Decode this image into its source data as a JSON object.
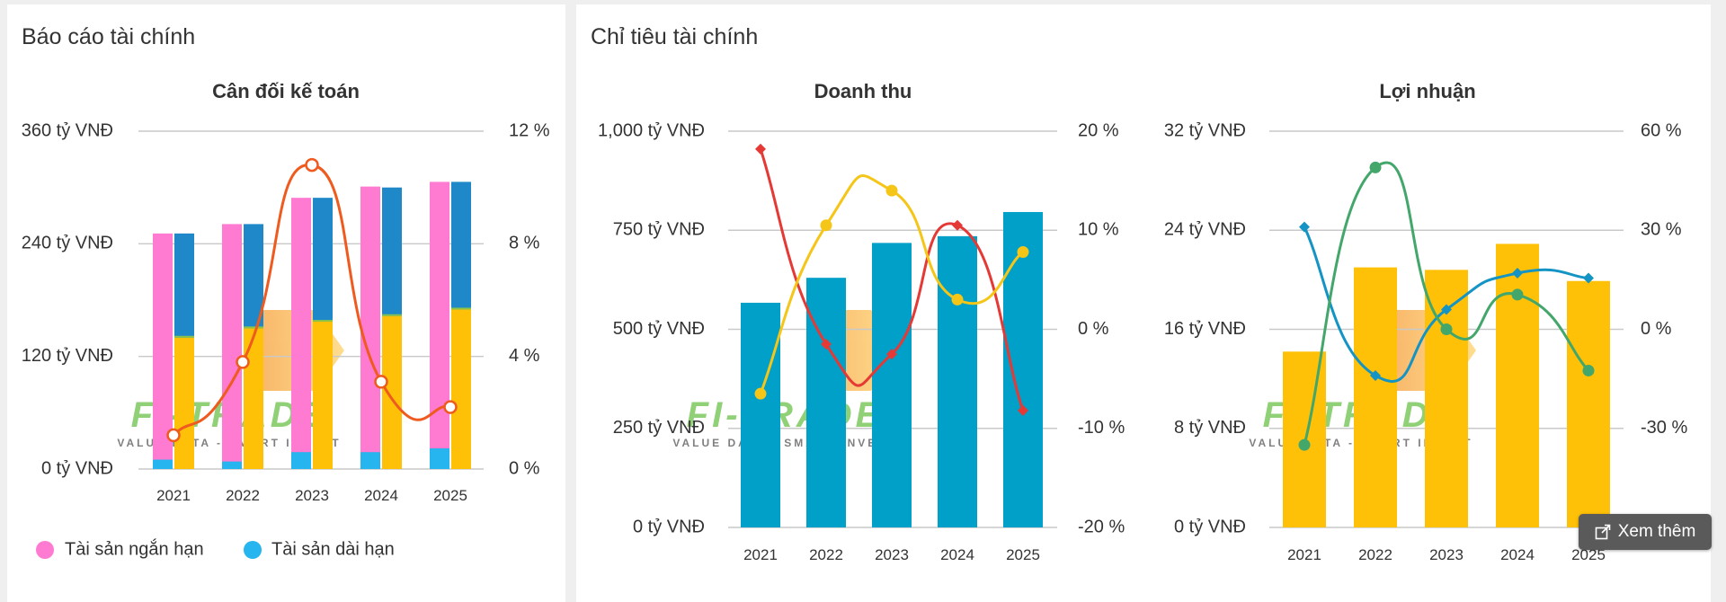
{
  "panels": {
    "left_title": "Báo cáo tài chính",
    "right_title": "Chỉ tiêu tài chính"
  },
  "watermark": {
    "brand": "FI-TRADE",
    "tagline": "VALUE DATA - SMART INVEST"
  },
  "buttons": {
    "more_label": "Xem thêm"
  },
  "colors": {
    "short_assets": "#ff7ad1",
    "long_assets": "#1e88c8",
    "long_assets_base": "#26b5ee",
    "equity_yellow": "#ffc107",
    "line_orange": "#ef5a1f",
    "revenue_bar": "#00a0c8",
    "line_red": "#e53935",
    "line_yellow": "#f5c518",
    "line_blue": "#1494c4",
    "line_green": "#43a66b"
  },
  "chart_data": [
    {
      "type": "bar",
      "title": "Cân đối kế toán",
      "categories": [
        "2021",
        "2022",
        "2023",
        "2024",
        "2025"
      ],
      "y_left": {
        "min": 0,
        "max": 360,
        "ticks": [
          0,
          120,
          240,
          360
        ],
        "unit_suffix": " tỷ VNĐ"
      },
      "y_right": {
        "min": 0,
        "max": 12,
        "ticks": [
          0,
          4,
          8,
          12
        ],
        "unit_suffix": " %"
      },
      "stack_left": [
        {
          "name": "Tài sản ngắn hạn",
          "values": [
            251,
            261,
            289,
            301,
            306
          ]
        },
        {
          "name": "Tài sản dài hạn",
          "values": [
            10,
            8,
            18,
            18,
            22
          ]
        }
      ],
      "stack_right": [
        {
          "values": [
            140,
            150,
            157,
            163,
            170
          ]
        },
        {
          "values": [
            251,
            261,
            289,
            300,
            306
          ]
        }
      ],
      "line": {
        "values": [
          1.2,
          3.8,
          10.8,
          3.1,
          2.2
        ]
      },
      "legend": [
        "Tài sản ngắn hạn",
        "Tài sản dài hạn"
      ],
      "legend_position": "bottom-left",
      "grid": true
    },
    {
      "type": "bar",
      "title": "Doanh thu",
      "categories": [
        "2021",
        "2022",
        "2023",
        "2024",
        "2025"
      ],
      "y_left": {
        "min": 0,
        "max": 1000,
        "ticks": [
          0,
          250,
          500,
          750,
          1000
        ],
        "tick_labels": [
          "0 tỷ VNĐ",
          "250 tỷ VNĐ",
          "500 tỷ VNĐ",
          "750 tỷ VNĐ",
          "1,000 tỷ VNĐ"
        ]
      },
      "y_right": {
        "min": -20,
        "max": 20,
        "ticks": [
          -20,
          -10,
          0,
          10,
          20
        ],
        "unit_suffix": " %"
      },
      "bars": {
        "values": [
          567,
          630,
          718,
          735,
          796
        ]
      },
      "lines": [
        {
          "color_key": "line_red",
          "marker": "diamond",
          "values": [
            18.2,
            -1.5,
            -2.5,
            10.5,
            -8.2
          ]
        },
        {
          "color_key": "line_yellow",
          "marker": "circle",
          "values": [
            -6.5,
            10.5,
            14.0,
            3.0,
            7.8
          ]
        }
      ],
      "grid": true
    },
    {
      "type": "bar",
      "title": "Lợi nhuận",
      "categories": [
        "2021",
        "2022",
        "2023",
        "2024",
        "2025"
      ],
      "y_left": {
        "min": 0,
        "max": 32,
        "ticks": [
          0,
          8,
          16,
          24,
          32
        ],
        "unit_suffix": " tỷ VNĐ"
      },
      "y_right": {
        "min": -60,
        "max": 60,
        "ticks": [
          -60,
          -30,
          0,
          30,
          60
        ],
        "unit_suffix": " %"
      },
      "bars": {
        "values": [
          14.2,
          21.0,
          20.8,
          22.9,
          19.9
        ]
      },
      "lines": [
        {
          "color_key": "line_blue",
          "marker": "diamond",
          "values": [
            31,
            -14,
            6,
            17,
            15.5
          ]
        },
        {
          "color_key": "line_green",
          "marker": "circle",
          "values": [
            -35,
            49,
            0,
            10.5,
            -12.5
          ]
        }
      ],
      "grid": true
    }
  ]
}
